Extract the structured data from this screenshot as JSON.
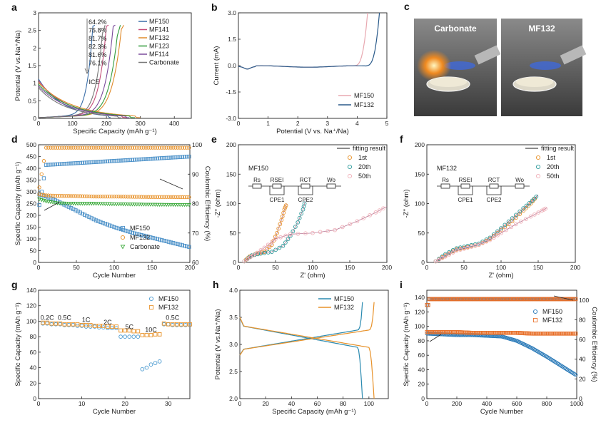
{
  "chart_data": [
    {
      "id": "a",
      "label": "a",
      "type": "line",
      "xlabel": "Specific Capacity (mAh g⁻¹)",
      "ylabel": "Potential (V vs.Na⁺/Na)",
      "xlim": [
        0,
        450
      ],
      "ylim": [
        0,
        3.0
      ],
      "xticks": [
        0,
        100,
        200,
        300,
        400
      ],
      "yticks": [
        0,
        0.5,
        1.0,
        1.5,
        2.0,
        2.5,
        3.0
      ],
      "ice_values": [
        "64.2%",
        "75.8%",
        "81.7%",
        "82.3%",
        "81.6%",
        "76.1%"
      ],
      "ice_label": "ICE",
      "series": [
        {
          "name": "MF150",
          "color": "#3a6ea8",
          "discharge_end": 215,
          "charge_end": 160,
          "start": 1.05
        },
        {
          "name": "MF141",
          "color": "#c44a78",
          "discharge_end": 260,
          "charge_end": 200,
          "start": 1.0
        },
        {
          "name": "MF132",
          "color": "#e08a2a",
          "discharge_end": 300,
          "charge_end": 245,
          "start": 0.95
        },
        {
          "name": "MF123",
          "color": "#2f9a3a",
          "discharge_end": 285,
          "charge_end": 235,
          "start": 0.9
        },
        {
          "name": "MF114",
          "color": "#7a4a9a",
          "discharge_end": 270,
          "charge_end": 220,
          "start": 0.85
        },
        {
          "name": "Carbonate",
          "color": "#777777",
          "discharge_end": 245,
          "charge_end": 190,
          "start": 0.8
        }
      ]
    },
    {
      "id": "b",
      "label": "b",
      "type": "line",
      "xlabel": "Potential (V vs. Na⁺/Na)",
      "ylabel": "Current (mA)",
      "xlim": [
        0,
        5
      ],
      "ylim": [
        -3.0,
        3.0
      ],
      "xticks": [
        0,
        1,
        2,
        3,
        4,
        5
      ],
      "yticks": [
        "-3.0",
        "-1.5",
        "0.0",
        "1.5",
        "3.0"
      ],
      "series": [
        {
          "name": "MF150",
          "color": "#e8a8b0",
          "onset": 3.9
        },
        {
          "name": "MF132",
          "color": "#2a5a8a",
          "onset": 4.3
        }
      ]
    },
    {
      "id": "c",
      "label": "c",
      "type": "photo",
      "titles": [
        "Carbonate",
        "MF132"
      ]
    },
    {
      "id": "d",
      "label": "d",
      "type": "scatter",
      "xlabel": "Cycle Number",
      "ylabel": "Specific Capacity (mAh g⁻¹)",
      "y2label": "Coulombic Efficiency (%)",
      "xlim": [
        0,
        200
      ],
      "ylim": [
        0,
        500
      ],
      "y2lim": [
        60,
        100
      ],
      "xticks": [
        0,
        50,
        100,
        150,
        200
      ],
      "yticks": [
        0,
        50,
        100,
        150,
        200,
        250,
        300,
        350,
        400,
        450,
        500
      ],
      "y2ticks": [
        60,
        70,
        80,
        90,
        100
      ],
      "series": [
        {
          "name": "MF150",
          "color": "#4a90c8",
          "capacity": {
            "x": [
              0,
              10,
              25,
              50,
              75,
              100,
              125,
              150,
              175,
              200
            ],
            "y": [
              290,
              280,
              260,
              220,
              180,
              150,
              125,
              105,
              85,
              65
            ]
          },
          "ce_end": 96
        },
        {
          "name": "MF132",
          "color": "#e8922a",
          "capacity": {
            "x": [
              0,
              10,
              25,
              50,
              75,
              100,
              125,
              150,
              175,
              200
            ],
            "y": [
              290,
              285,
              283,
              282,
              280,
              280,
              279,
              278,
              278,
              277
            ]
          },
          "ce_end": 99
        },
        {
          "name": "Carbonate",
          "color": "#3aaa3a",
          "capacity": {
            "x": [
              0,
              10,
              25,
              50,
              75,
              100,
              125,
              150,
              175,
              200
            ],
            "y": [
              270,
              260,
              252,
              250,
              250,
              248,
              247,
              246,
              245,
              245
            ]
          }
        }
      ]
    },
    {
      "id": "e",
      "label": "e",
      "type": "scatter",
      "title": "MF150",
      "xlabel": "Z' (ohm)",
      "ylabel": "-Z'' (ohm)",
      "xlim": [
        0,
        200
      ],
      "ylim": [
        0,
        200
      ],
      "xticks": [
        0,
        50,
        100,
        150,
        200
      ],
      "yticks": [
        0,
        50,
        100,
        150,
        200
      ],
      "fit_label": "fitting result",
      "circuit": [
        "Rs",
        "RSEI",
        "CPE1",
        "RCT",
        "CPE2",
        "Wo"
      ],
      "series": [
        {
          "name": "1st",
          "color": "#e8922a",
          "x": [
            8,
            15,
            25,
            35,
            45,
            52,
            58,
            62,
            65
          ],
          "y": [
            2,
            10,
            15,
            18,
            30,
            50,
            72,
            90,
            100
          ]
        },
        {
          "name": "20th",
          "color": "#2a9a9a",
          "x": [
            8,
            18,
            30,
            45,
            60,
            70,
            80,
            87,
            90
          ],
          "y": [
            2,
            12,
            15,
            18,
            28,
            45,
            68,
            90,
            105
          ]
        },
        {
          "name": "50th",
          "color": "#f0b0b8",
          "x": [
            8,
            20,
            35,
            50,
            70,
            100,
            130,
            160,
            185,
            200
          ],
          "y": [
            2,
            12,
            25,
            40,
            48,
            50,
            55,
            70,
            85,
            95
          ]
        }
      ]
    },
    {
      "id": "f",
      "label": "f",
      "type": "scatter",
      "title": "MF132",
      "xlabel": "Z' (ohm)",
      "ylabel": "-Z'' (ohm)",
      "xlim": [
        0,
        200
      ],
      "ylim": [
        0,
        200
      ],
      "xticks": [
        0,
        50,
        100,
        150,
        200
      ],
      "yticks": [
        0,
        50,
        100,
        150,
        200
      ],
      "fit_label": "fitting result",
      "circuit": [
        "Rs",
        "RSEI",
        "CPE1",
        "RCT",
        "CPE2",
        "Wo"
      ],
      "series": [
        {
          "name": "1st",
          "color": "#e8922a",
          "x": [
            12,
            25,
            40,
            55,
            70,
            85,
            100,
            115,
            130,
            140,
            148
          ],
          "y": [
            2,
            12,
            22,
            26,
            30,
            40,
            55,
            70,
            88,
            100,
            112
          ]
        },
        {
          "name": "20th",
          "color": "#2a9a9a",
          "x": [
            12,
            25,
            40,
            55,
            70,
            85,
            100,
            115,
            130,
            142,
            150
          ],
          "y": [
            2,
            14,
            24,
            28,
            32,
            42,
            58,
            75,
            92,
            105,
            115
          ]
        },
        {
          "name": "50th",
          "color": "#f0b0b8",
          "x": [
            12,
            25,
            40,
            55,
            70,
            85,
            100,
            120,
            140,
            155,
            162
          ],
          "y": [
            2,
            10,
            20,
            25,
            30,
            38,
            50,
            65,
            78,
            88,
            93
          ]
        }
      ]
    },
    {
      "id": "g",
      "label": "g",
      "type": "scatter",
      "xlabel": "Cycle Number",
      "ylabel": "Specific Capacity (mAh g⁻¹)",
      "xlim": [
        0,
        35
      ],
      "ylim": [
        0,
        140
      ],
      "xticks": [
        0,
        10,
        20,
        30
      ],
      "yticks": [
        0,
        20,
        40,
        60,
        80,
        100,
        120,
        140
      ],
      "rate_labels": [
        "0.2C",
        "0.5C",
        "1C",
        "2C",
        "5C",
        "10C",
        "0.5C"
      ],
      "series": [
        {
          "name": "MF150",
          "color": "#4a9ad0",
          "x": [
            1,
            2,
            3,
            4,
            5,
            6,
            7,
            8,
            9,
            10,
            11,
            12,
            13,
            14,
            15,
            16,
            17,
            18,
            19,
            20,
            21,
            22,
            23,
            24,
            25,
            26,
            27,
            28,
            29,
            30,
            31,
            32,
            33,
            34,
            35
          ],
          "y": [
            97,
            97,
            96,
            96,
            96,
            95,
            95,
            95,
            94,
            94,
            93,
            93,
            93,
            92,
            92,
            91,
            91,
            91,
            80,
            80,
            80,
            80,
            80,
            38,
            40,
            44,
            46,
            48,
            96,
            96,
            95,
            95,
            95,
            95,
            95
          ]
        },
        {
          "name": "MF132",
          "color": "#e8922a",
          "x": [
            1,
            2,
            3,
            4,
            5,
            6,
            7,
            8,
            9,
            10,
            11,
            12,
            13,
            14,
            15,
            16,
            17,
            18,
            19,
            20,
            21,
            22,
            23,
            24,
            25,
            26,
            27,
            28,
            29,
            30,
            31,
            32,
            33,
            34,
            35
          ],
          "y": [
            98,
            98,
            97,
            97,
            97,
            96,
            96,
            96,
            96,
            95,
            95,
            95,
            94,
            94,
            94,
            93,
            93,
            93,
            88,
            88,
            88,
            87,
            87,
            82,
            82,
            82,
            83,
            83,
            97,
            96,
            96,
            96,
            96,
            96,
            96
          ]
        }
      ]
    },
    {
      "id": "h",
      "label": "h",
      "type": "line",
      "xlabel": "Specific Capacity (mAh g⁻¹)",
      "ylabel": "Potential (V vs.Na⁺/Na)",
      "xlim": [
        0,
        115
      ],
      "ylim": [
        2.0,
        4.0
      ],
      "xticks": [
        0,
        20,
        40,
        60,
        80,
        100
      ],
      "yticks": [
        "2.0",
        "2.5",
        "3.0",
        "3.5",
        "4.0"
      ],
      "series": [
        {
          "name": "MF150",
          "color": "#2a8ab0",
          "end": 95
        },
        {
          "name": "MF132",
          "color": "#e8922a",
          "end": 104
        }
      ]
    },
    {
      "id": "i",
      "label": "i",
      "type": "scatter",
      "xlabel": "Cycle Number",
      "ylabel": "Specific Capacity (mAh g⁻¹)",
      "y2label": "Coulombic Efficiency (%)",
      "xlim": [
        0,
        1000
      ],
      "ylim": [
        0,
        150
      ],
      "y2lim": [
        0,
        110
      ],
      "xticks": [
        0,
        200,
        400,
        600,
        800,
        1000
      ],
      "yticks": [
        0,
        20,
        40,
        60,
        80,
        100,
        120,
        140
      ],
      "y2ticks": [
        0,
        20,
        40,
        60,
        80,
        100
      ],
      "series": [
        {
          "name": "MF150",
          "color": "#2a7ab8",
          "capacity": {
            "x": [
              0,
              100,
              200,
              300,
              400,
              500,
              600,
              700,
              800,
              900,
              1000
            ],
            "y": [
              90,
              89,
              88,
              88,
              87,
              86,
              80,
              70,
              58,
              45,
              32
            ]
          }
        },
        {
          "name": "MF132",
          "color": "#e8702a",
          "capacity": {
            "x": [
              0,
              100,
              200,
              300,
              400,
              500,
              600,
              700,
              800,
              900,
              1000
            ],
            "y": [
              92,
              92,
              92,
              91,
              91,
              91,
              91,
              90,
              90,
              90,
              90
            ]
          },
          "ce": 101
        }
      ]
    }
  ]
}
